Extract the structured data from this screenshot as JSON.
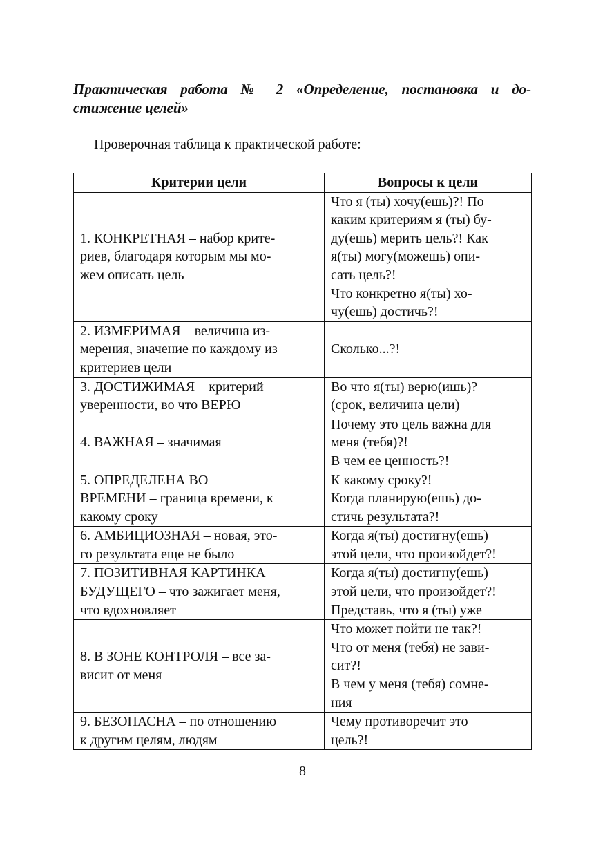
{
  "title": {
    "line1": "Практическая работа № 2 «Определение, постановка и до-",
    "line2": "стижение целей»"
  },
  "intro": "Проверочная таблица к практической работе:",
  "table": {
    "headers": [
      "Критерии цели",
      "Вопросы к цели"
    ],
    "rows": [
      {
        "criterion": "1. КОНКРЕТНАЯ – набор крите-\nриев, благодаря которым мы мо-\nжем описать цель",
        "questions": "Что я (ты) хочу(ешь)?! По\nкаким критериям я (ты) бу-\nду(ешь) мерить цель?! Как\nя(ты) могу(можешь) опи-\nсать цель?!\nЧто конкретно я(ты) хо-\nчу(ешь) достичь?!"
      },
      {
        "criterion": "2. ИЗМЕРИМАЯ – величина из-\nмерения, значение по каждому из\nкритериев цели",
        "questions": "Сколько...?!"
      },
      {
        "criterion": "3. ДОСТИЖИМАЯ – критерий\nуверенности, во что ВЕРЮ",
        "questions": "Во что я(ты) верю(ишь)?\n(срок, величина цели)"
      },
      {
        "criterion": "4. ВАЖНАЯ – значимая",
        "questions": "Почему это цель важна для\nменя (тебя)?!\nВ чем ее ценность?!"
      },
      {
        "criterion": "5. ОПРЕДЕЛЕНА ВО\nВРЕМЕНИ – граница времени, к\nкакому сроку",
        "questions": "К какому сроку?!\nКогда планирую(ешь) до-\nстичь результата?!"
      },
      {
        "criterion": "6. АМБИЦИОЗНАЯ – новая, это-\nго результата еще не было",
        "questions": "Когда я(ты) достигну(ешь)\nэтой цели, что произойдет?!"
      },
      {
        "criterion": "7. ПОЗИТИВНАЯ КАРТИНКА\nБУДУЩЕГО – что зажигает меня,\nчто вдохновляет",
        "questions": "Когда я(ты) достигну(ешь)\nэтой цели, что произойдет?!\nПредставь, что я (ты) уже"
      },
      {
        "criterion": "8. В ЗОНЕ КОНТРОЛЯ – все за-\nвисит от меня",
        "questions": "Что может пойти не так?!\nЧто от меня (тебя) не зави-\nсит?!\nВ чем у меня (тебя) сомне-\nния"
      },
      {
        "criterion": "9. БЕЗОПАСНА – по отношению\nк другим целям, людям",
        "questions": "Чему противоречит это\nцель?!"
      }
    ]
  },
  "page_number": "8"
}
